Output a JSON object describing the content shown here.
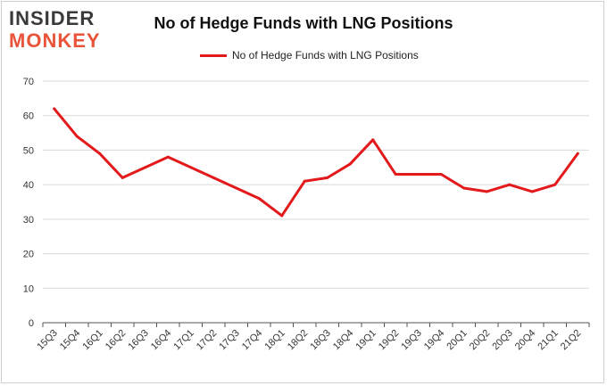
{
  "brand": {
    "line1": "INSIDER",
    "line2": "MONKEY"
  },
  "colors": {
    "series": "#e31a1c",
    "grid": "#d9d9d9",
    "axis": "#555555",
    "logo_dark": "#3a3a3a",
    "logo_accent": "#e8533a"
  },
  "chart_data": {
    "type": "line",
    "title": "No of Hedge Funds with LNG Positions",
    "xlabel": "",
    "ylabel": "",
    "ylim": [
      0,
      70
    ],
    "yticks": [
      0,
      10,
      20,
      30,
      40,
      50,
      60,
      70
    ],
    "grid": true,
    "legend_position": "top-center",
    "categories": [
      "15Q3",
      "15Q4",
      "16Q1",
      "16Q2",
      "16Q3",
      "16Q4",
      "17Q1",
      "17Q2",
      "17Q3",
      "17Q4",
      "18Q1",
      "18Q2",
      "18Q3",
      "18Q4",
      "19Q1",
      "19Q2",
      "19Q3",
      "19Q4",
      "20Q1",
      "20Q2",
      "20Q3",
      "20Q4",
      "21Q1",
      "21Q2"
    ],
    "series": [
      {
        "name": "No of Hedge Funds with LNG Positions",
        "values": [
          62,
          54,
          49,
          42,
          45,
          48,
          45,
          42,
          39,
          36,
          31,
          41,
          42,
          46,
          53,
          43,
          43,
          43,
          39,
          38,
          40,
          38,
          40,
          49
        ]
      }
    ]
  }
}
